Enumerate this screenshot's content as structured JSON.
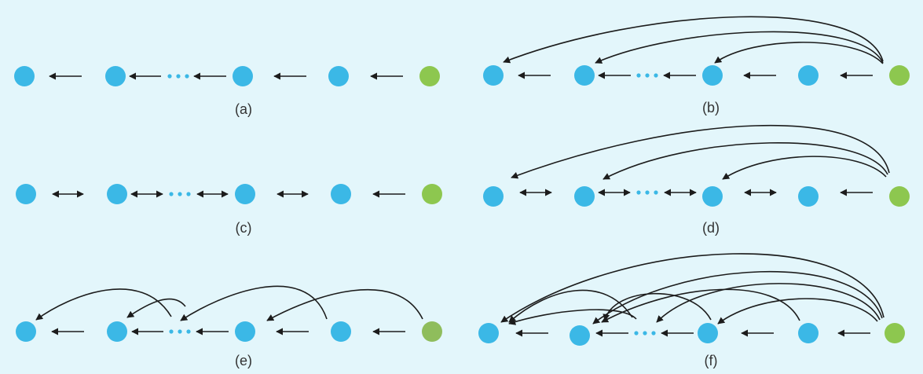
{
  "colors": {
    "background": "#e3f6fb",
    "node": "#3bb8e6",
    "sink_node": "#8dc74f",
    "sink_node_e": "#8fbd5c",
    "edge": "#1c1c1c",
    "ellipsis": "#3bb8e6"
  },
  "panels": [
    {
      "id": "a",
      "caption": "(a)",
      "links": "one-way-left",
      "skip_arcs": "none"
    },
    {
      "id": "b",
      "caption": "(b)",
      "links": "one-way-left",
      "skip_arcs": "from-sink-to-all"
    },
    {
      "id": "c",
      "caption": "(c)",
      "links": "two-way-except-last",
      "skip_arcs": "none"
    },
    {
      "id": "d",
      "caption": "(d)",
      "links": "two-way-except-last",
      "skip_arcs": "from-sink-to-all"
    },
    {
      "id": "e",
      "caption": "(e)",
      "links": "one-way-left",
      "skip_arcs": "skip-one"
    },
    {
      "id": "f",
      "caption": "(f)",
      "links": "one-way-left",
      "skip_arcs": "dense"
    }
  ]
}
